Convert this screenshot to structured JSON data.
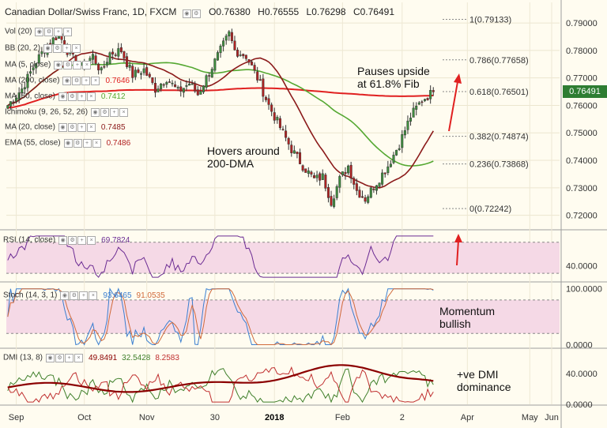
{
  "header": {
    "title": "Canadian Dollar/Swiss Franc, 1D, FXCM",
    "ohlc": [
      "O0.76380",
      "H0.76555",
      "L0.76298",
      "C0.76491"
    ]
  },
  "price_tag": "0.76491",
  "colors": {
    "up": "#3f8f3f",
    "down": "#b22222",
    "ma200": "#e02020",
    "ma50": "#55a832",
    "ma20": "#8b1a1a",
    "rsi": "#6b2b93",
    "rsi_bg": "#f5d9e6",
    "stoch_k": "#3b7fd0",
    "stoch_d": "#d06a3b",
    "dmi_adx": "#8b0000",
    "dmi_plus": "#3f7f2a",
    "dmi_minus": "#c03030",
    "price_tag": "#2e7d32"
  },
  "indicators": [
    {
      "label": "Vol (20)",
      "value": ""
    },
    {
      "label": "BB (20, 2)",
      "value": ""
    },
    {
      "label": "MA (5, close)",
      "value": ""
    },
    {
      "label": "MA (200, close)",
      "value": "0.7646"
    },
    {
      "label": "MA (50, close)",
      "value": "0.7412"
    },
    {
      "label": "Ichimoku (9, 26, 52, 26)",
      "value": ""
    },
    {
      "label": "MA (20, close)",
      "value": "0.7485"
    },
    {
      "label": "EMA (55, close)",
      "value": "0.7486"
    }
  ],
  "annotations": {
    "hover": [
      "Hovers around",
      "200-DMA"
    ],
    "pause": [
      "Pauses upside",
      "at 61.8% Fib"
    ],
    "momentum": [
      "Momentum",
      "bullish"
    ],
    "dmi": [
      "+ve DMI",
      "dominance"
    ]
  },
  "chart_data": [
    {
      "type": "candlestick",
      "title": "Canadian Dollar/Swiss Franc, 1D, FXCM",
      "ylim": [
        0.715,
        0.7975
      ],
      "y_ticks": [
        "0.79000",
        "0.78000",
        "0.77000",
        "0.76000",
        "0.75000",
        "0.74000",
        "0.73000",
        "0.72000"
      ],
      "y_tick_values": [
        0.79,
        0.78,
        0.77,
        0.76,
        0.75,
        0.74,
        0.73,
        0.72
      ],
      "x_ticks": [
        "Sep",
        "Oct",
        "Nov",
        "30",
        "2018",
        "Feb",
        "2",
        "Apr",
        "May",
        "Jun"
      ],
      "last_close": 0.76491,
      "anchors": [
        [
          0,
          0.76
        ],
        [
          5,
          0.766
        ],
        [
          10,
          0.776
        ],
        [
          14,
          0.782
        ],
        [
          18,
          0.786
        ],
        [
          22,
          0.778
        ],
        [
          26,
          0.774
        ],
        [
          30,
          0.778
        ],
        [
          33,
          0.772
        ],
        [
          36,
          0.779
        ],
        [
          40,
          0.78
        ],
        [
          44,
          0.771
        ],
        [
          48,
          0.773
        ],
        [
          52,
          0.766
        ],
        [
          56,
          0.77
        ],
        [
          60,
          0.765
        ],
        [
          64,
          0.768
        ],
        [
          67,
          0.764
        ],
        [
          71,
          0.772
        ],
        [
          75,
          0.78
        ],
        [
          78,
          0.786
        ],
        [
          80,
          0.78
        ],
        [
          84,
          0.778
        ],
        [
          88,
          0.77
        ],
        [
          92,
          0.76
        ],
        [
          96,
          0.752
        ],
        [
          100,
          0.744
        ],
        [
          104,
          0.738
        ],
        [
          108,
          0.733
        ],
        [
          111,
          0.734
        ],
        [
          114,
          0.725
        ],
        [
          117,
          0.733
        ],
        [
          120,
          0.738
        ],
        [
          123,
          0.729
        ],
        [
          126,
          0.726
        ],
        [
          130,
          0.732
        ],
        [
          134,
          0.738
        ],
        [
          138,
          0.746
        ],
        [
          142,
          0.756
        ],
        [
          146,
          0.762
        ],
        [
          150,
          0.7649
        ]
      ],
      "fib_levels": [
        {
          "label": "1(0.79133)",
          "value": 0.79133
        },
        {
          "label": "0.786(0.77658)",
          "value": 0.77658
        },
        {
          "label": "0.618(0.76501)",
          "value": 0.76501
        },
        {
          "label": "0.382(0.74874)",
          "value": 0.74874
        },
        {
          "label": "0.236(0.73868)",
          "value": 0.73868
        },
        {
          "label": "0(0.72242)",
          "value": 0.72242
        }
      ],
      "ma_periods": {
        "ma200": 200,
        "ma50": 50,
        "ma20": 20
      }
    },
    {
      "type": "line",
      "title": "RSI (14, close)",
      "value_label": "69.7824",
      "ylim": [
        20,
        85
      ],
      "y_ticks": [
        "40.0000"
      ],
      "y_tick_values": [
        40
      ],
      "levels": [
        70,
        30
      ]
    },
    {
      "type": "line",
      "title": "Stoch (14, 3, 1)",
      "value_labels": [
        "93.6465",
        "91.0535"
      ],
      "ylim": [
        -5,
        108
      ],
      "y_ticks": [
        "100.0000",
        "0.0000"
      ],
      "y_tick_values": [
        100,
        0
      ],
      "levels": [
        80,
        20
      ]
    },
    {
      "type": "line",
      "title": "DMI (13, 8)",
      "value_labels": [
        "49.8491",
        "32.5428",
        "8.2583"
      ],
      "ylim": [
        0,
        70
      ],
      "y_ticks": [
        "40.0000",
        "0.0000"
      ],
      "y_tick_values": [
        40,
        0
      ]
    }
  ]
}
